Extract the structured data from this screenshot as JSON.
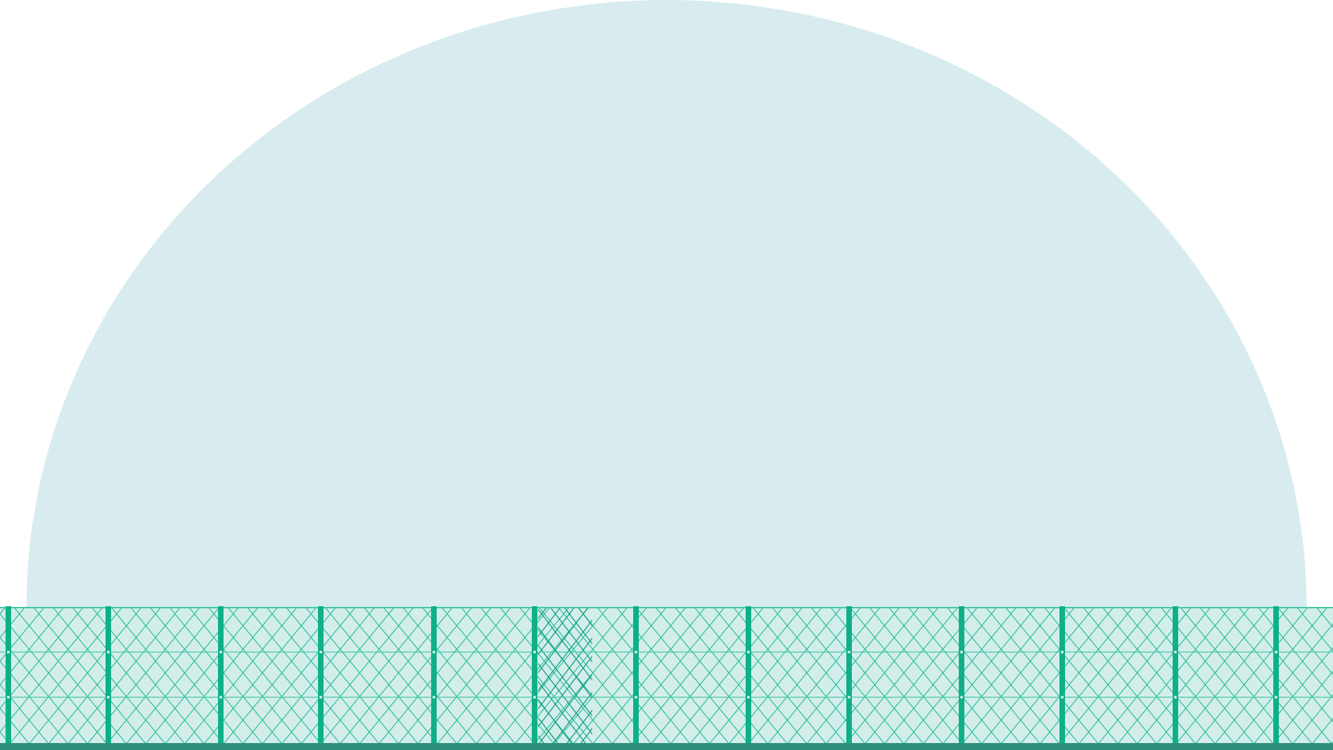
{
  "colors": {
    "background": "#ffffff",
    "dome": "#d8ecef",
    "fence_post": "#0fb087",
    "fence_mesh": "#2cbf99",
    "fence_rail": "#43c7a3",
    "fence_fill": "#d3eeea",
    "ground": "#2f8f7c",
    "gate_mesh": "#18a07e"
  },
  "scene": {
    "description_icon": "chain-link-fence-icon",
    "post_count": 13,
    "gate_panel_index": 5
  }
}
